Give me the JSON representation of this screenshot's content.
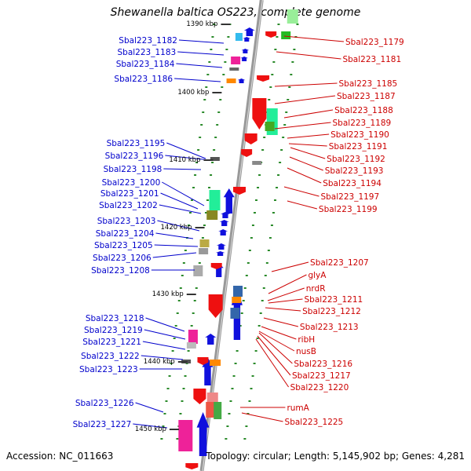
{
  "title": "Shewanella baltica OS223, complete genome",
  "accession": "Accession: NC_011663",
  "summary": "Topology: circular; Length: 5,145,902 bp; Genes: 4,281",
  "kbp_labels": [
    "1390 kbp",
    "1400 kbp",
    "1410 kbp",
    "1420 kbp",
    "1430 kbp",
    "1440 kbp",
    "1450 kbp"
  ],
  "left_labels": [
    "Sbal223_1182",
    "Sbal223_1183",
    "Sbal223_1184",
    "Sbal223_1186",
    "Sbal223_1195",
    "Sbal223_1196",
    "Sbal223_1198",
    "Sbal223_1200",
    "Sbal223_1201",
    "Sbal223_1202",
    "Sbal223_1203",
    "Sbal223_1204",
    "Sbal223_1205",
    "Sbal223_1206",
    "Sbal223_1208",
    "Sbal223_1218",
    "Sbal223_1219",
    "Sbal223_1221",
    "Sbal223_1222",
    "Sbal223_1223",
    "Sbal223_1226",
    "Sbal223_1227"
  ],
  "right_labels": [
    "Sbal223_1179",
    "Sbal223_1181",
    "Sbal223_1185",
    "Sbal223_1187",
    "Sbal223_1188",
    "Sbal223_1189",
    "Sbal223_1190",
    "Sbal223_1191",
    "Sbal223_1192",
    "Sbal223_1193",
    "Sbal223_1194",
    "Sbal223_1197",
    "Sbal223_1199",
    "Sbal223_1207",
    "glyA",
    "nrdR",
    "Sbal223_1211",
    "Sbal223_1212",
    "Sbal223_1213",
    "ribH",
    "nusB",
    "Sbal223_1216",
    "Sbal223_1217",
    "Sbal223_1220",
    "rumA",
    "Sbal223_1225"
  ],
  "colors": {
    "left_label": "#0000cc",
    "right_label": "#cc0000",
    "forward_gene": "#1010dd",
    "reverse_gene": "#ee1010",
    "backbone": "#999999",
    "tick": "#2a8a2a"
  }
}
